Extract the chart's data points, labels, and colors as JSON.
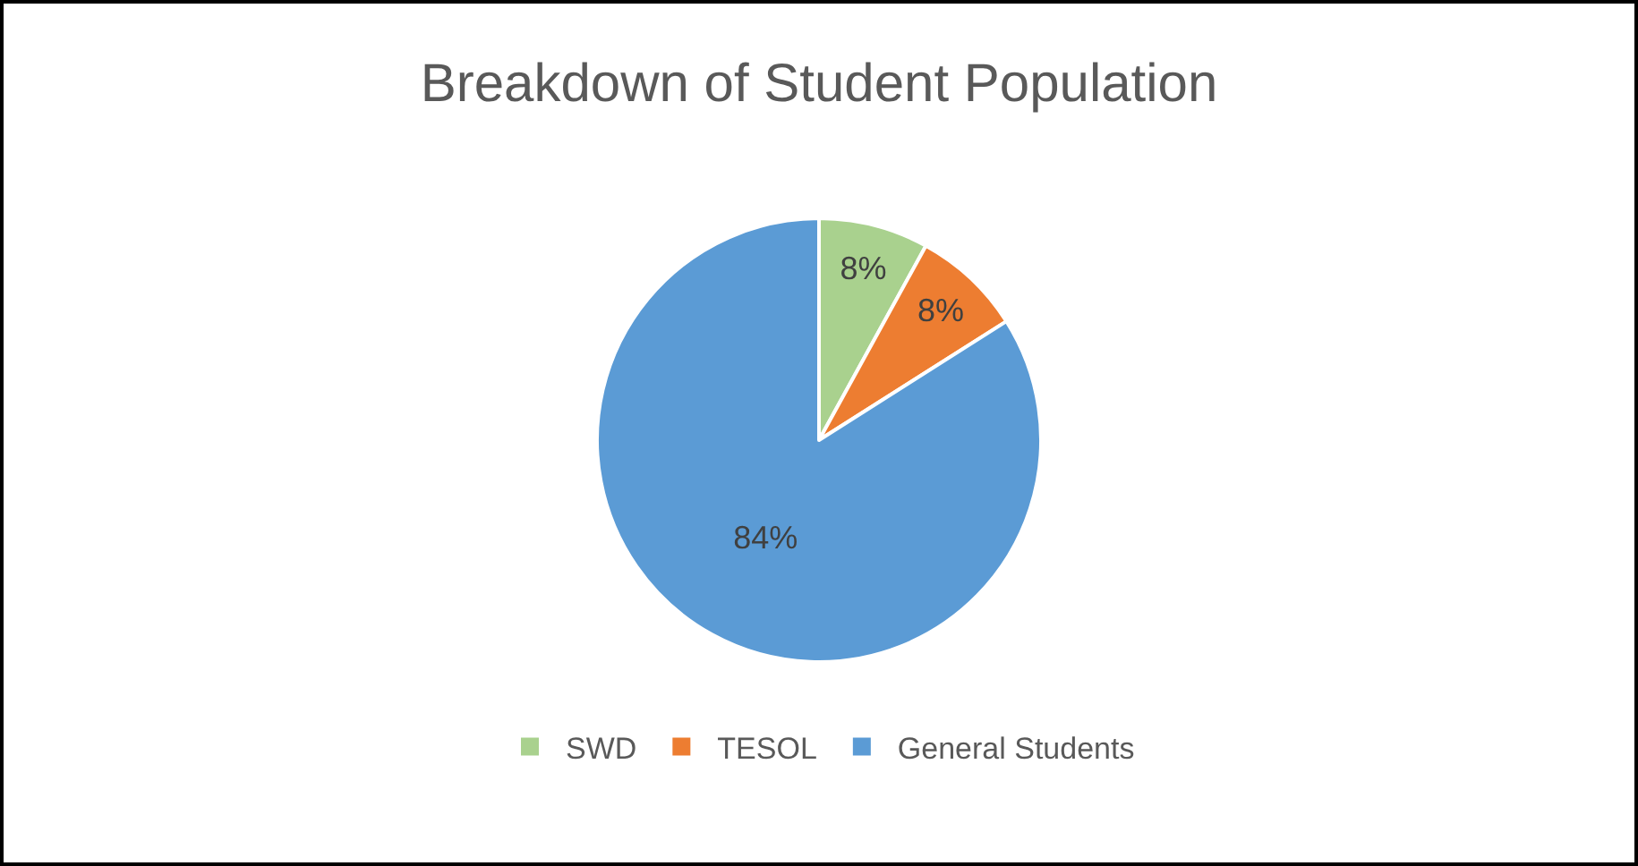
{
  "chart_data": {
    "type": "pie",
    "title": "Breakdown of Student Population",
    "categories": [
      "SWD",
      "TESOL",
      "General Students"
    ],
    "values": [
      8,
      8,
      84
    ],
    "value_labels": [
      "8%",
      "8%",
      "84%"
    ],
    "colors": [
      "#a9d18e",
      "#ed7d31",
      "#5b9bd5"
    ],
    "legend": "bottom"
  }
}
